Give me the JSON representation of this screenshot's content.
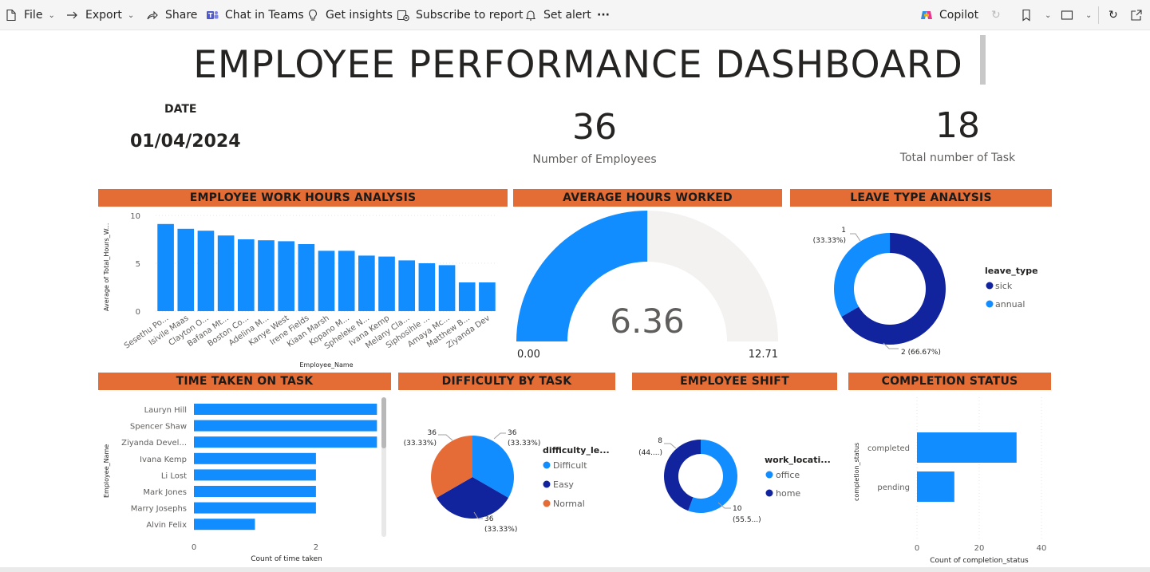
{
  "toolbar": {
    "file": "File",
    "export": "Export",
    "share": "Share",
    "chat_in_teams": "Chat in Teams",
    "get_insights": "Get insights",
    "subscribe": "Subscribe to report",
    "set_alert": "Set alert",
    "more": "···",
    "copilot": "Copilot"
  },
  "dashboard": {
    "title": "EMPLOYEE PERFORMANCE DASHBOARD",
    "date_label": "DATE",
    "date_value": "01/04/2024",
    "kpi_employees_value": "36",
    "kpi_employees_label": "Number of Employees",
    "kpi_tasks_value": "18",
    "kpi_tasks_label": "Total number of Task"
  },
  "headers": {
    "work_hours": "EMPLOYEE WORK HOURS ANALYSIS",
    "avg_hours": "AVERAGE HOURS WORKED",
    "leave_type": "LEAVE TYPE ANALYSIS",
    "time_taken": "TIME TAKEN ON TASK",
    "difficulty": "DIFFICULTY BY TASK",
    "shift": "EMPLOYEE SHIFT",
    "completion": "COMPLETION STATUS"
  },
  "colors": {
    "accent_header": "#e46c35",
    "blue": "#118dff",
    "dark_blue": "#12239e",
    "orange": "#e66c37",
    "gauge_bg": "#f3f2f1"
  },
  "chart_data": [
    {
      "id": "work_hours",
      "type": "bar",
      "xlabel": "Employee_Name",
      "ylabel": "Average of Total_Hours_W...",
      "ylim": [
        0,
        10
      ],
      "yticks": [
        "0",
        "5",
        "10"
      ],
      "categories": [
        "Sesethu Po...",
        "Isivile Maas",
        "Clayton O...",
        "Bafana Mt...",
        "Boston Co...",
        "Adelina M...",
        "Kanye West",
        "Irene Fields",
        "Kiaan Marsh",
        "Kopano M...",
        "Spheleke N...",
        "Ivana Kemp",
        "Melany Cla...",
        "Siphosihle ...",
        "Amaya Mc...",
        "Matthew B...",
        "Ziyanda Dev"
      ],
      "values": [
        9.1,
        8.6,
        8.4,
        7.9,
        7.5,
        7.4,
        7.3,
        7.0,
        6.3,
        6.3,
        5.8,
        5.7,
        5.3,
        5.0,
        4.8,
        3.0,
        3.0
      ]
    },
    {
      "id": "avg_hours",
      "type": "gauge",
      "value": 6.36,
      "value_label": "6.36",
      "min": 0,
      "max": 12.71,
      "min_label": "0.00",
      "max_label": "12.71"
    },
    {
      "id": "leave_type",
      "type": "pie",
      "donut": true,
      "legend_title": "leave_type",
      "legend_position": "right",
      "slices": [
        {
          "name": "sick",
          "value": 2,
          "label": "2 (66.67%)"
        },
        {
          "name": "annual",
          "value": 1,
          "label_a": "1",
          "label_b": "(33.33%)"
        }
      ]
    },
    {
      "id": "time_taken",
      "type": "bar",
      "orientation": "horizontal",
      "xlabel": "Count of time taken",
      "ylabel": "Employee_Name",
      "xticks": [
        "0",
        "2"
      ],
      "xlim": [
        0,
        3.1
      ],
      "categories": [
        "Lauryn Hill",
        "Spencer Shaw",
        "Ziyanda Devel...",
        "Ivana Kemp",
        "Li Lost",
        "Mark Jones",
        "Marry Josephs",
        "Alvin Felix"
      ],
      "values": [
        3,
        3,
        3,
        2,
        2,
        2,
        2,
        1
      ]
    },
    {
      "id": "difficulty",
      "type": "pie",
      "legend_title": "difficulty_le...",
      "legend_position": "right",
      "slices": [
        {
          "name": "Difficult",
          "value": 36,
          "label_a": "36",
          "label_b": "(33.33%)"
        },
        {
          "name": "Easy",
          "value": 36,
          "label_a": "36",
          "label_b": "(33.33%)"
        },
        {
          "name": "Normal",
          "value": 36,
          "label_a": "36",
          "label_b": "(33.33%)"
        }
      ]
    },
    {
      "id": "shift",
      "type": "pie",
      "donut": true,
      "legend_title": "work_locati...",
      "legend_position": "right",
      "slices": [
        {
          "name": "office",
          "value": 10,
          "label_a": "10",
          "label_b": "(55.5...)"
        },
        {
          "name": "home",
          "value": 8,
          "label_a": "8",
          "label_b": "(44....)"
        }
      ]
    },
    {
      "id": "completion",
      "type": "bar",
      "orientation": "horizontal",
      "xlabel": "Count of completion_status",
      "ylabel": "completion_status",
      "xticks": [
        "0",
        "20",
        "40"
      ],
      "xlim": [
        0,
        40
      ],
      "categories": [
        "completed",
        "pending"
      ],
      "values": [
        32,
        12
      ]
    }
  ]
}
